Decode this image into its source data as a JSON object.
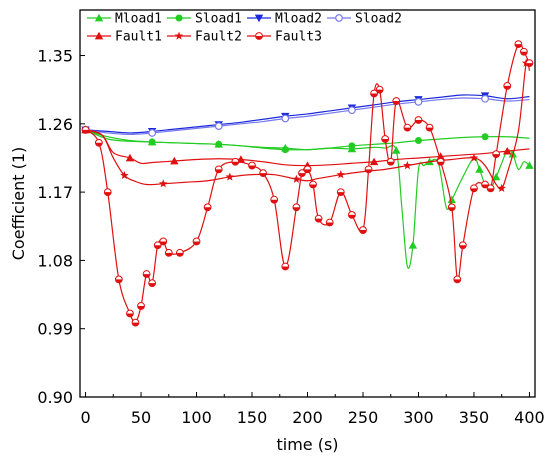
{
  "chart_data": {
    "type": "line",
    "title": "",
    "xlabel": "time (s)",
    "ylabel": "Coefficient (1)",
    "xlim": [
      -5,
      405
    ],
    "ylim": [
      0.9,
      1.41
    ],
    "xticks": [
      0,
      50,
      100,
      150,
      200,
      250,
      300,
      350,
      400
    ],
    "yticks": [
      0.9,
      0.99,
      1.08,
      1.17,
      1.26,
      1.35
    ],
    "xtick_labels": [
      "0",
      "50",
      "100",
      "150",
      "200",
      "250",
      "300",
      "350",
      "400"
    ],
    "ytick_labels": [
      "0.90",
      "0.99",
      "1.08",
      "1.17",
      "1.26",
      "1.35"
    ],
    "grid": false,
    "legend_position": "top",
    "series": [
      {
        "name": "Mload1",
        "color": "#22cc22",
        "marker": "triangle-up",
        "marker_step": 3,
        "x": [
          0,
          20,
          40,
          60,
          80,
          100,
          120,
          140,
          160,
          180,
          200,
          220,
          240,
          260,
          270,
          280,
          285,
          290,
          295,
          300,
          305,
          310,
          318,
          325,
          330,
          340,
          350,
          355,
          360,
          365,
          370,
          375,
          380,
          385,
          390,
          395,
          400
        ],
        "y": [
          1.252,
          1.243,
          1.238,
          1.236,
          1.235,
          1.234,
          1.233,
          1.231,
          1.229,
          1.228,
          1.226,
          1.228,
          1.227,
          1.229,
          1.228,
          1.225,
          1.15,
          1.072,
          1.1,
          1.2,
          1.205,
          1.21,
          1.208,
          1.15,
          1.16,
          1.19,
          1.215,
          1.2,
          1.18,
          1.175,
          1.19,
          1.208,
          1.225,
          1.22,
          1.2,
          1.21,
          1.205
        ]
      },
      {
        "name": "Sload1",
        "color": "#22cc22",
        "marker": "circle",
        "marker_step": 3,
        "x": [
          0,
          20,
          40,
          60,
          80,
          100,
          120,
          140,
          160,
          180,
          200,
          220,
          240,
          260,
          280,
          300,
          320,
          340,
          360,
          380,
          400
        ],
        "y": [
          1.252,
          1.24,
          1.237,
          1.236,
          1.235,
          1.234,
          1.233,
          1.231,
          1.228,
          1.226,
          1.226,
          1.228,
          1.231,
          1.233,
          1.235,
          1.238,
          1.24,
          1.242,
          1.243,
          1.243,
          1.241
        ]
      },
      {
        "name": "Mload2",
        "color": "#1a2adb",
        "marker": "triangle-down",
        "marker_step": 3,
        "x": [
          0,
          20,
          40,
          60,
          80,
          100,
          120,
          140,
          160,
          180,
          200,
          220,
          240,
          260,
          280,
          300,
          320,
          340,
          360,
          380,
          400
        ],
        "y": [
          1.252,
          1.25,
          1.248,
          1.25,
          1.253,
          1.256,
          1.259,
          1.262,
          1.266,
          1.27,
          1.273,
          1.277,
          1.281,
          1.285,
          1.289,
          1.292,
          1.295,
          1.298,
          1.297,
          1.293,
          1.296
        ]
      },
      {
        "name": "Sload2",
        "color": "#7777ee",
        "marker": "open-circle",
        "marker_step": 3,
        "x": [
          0,
          20,
          40,
          60,
          80,
          100,
          120,
          140,
          160,
          180,
          200,
          220,
          240,
          260,
          280,
          300,
          320,
          340,
          360,
          380,
          400
        ],
        "y": [
          1.252,
          1.248,
          1.246,
          1.248,
          1.251,
          1.254,
          1.257,
          1.26,
          1.263,
          1.267,
          1.27,
          1.274,
          1.278,
          1.282,
          1.286,
          1.289,
          1.292,
          1.294,
          1.293,
          1.29,
          1.292
        ]
      },
      {
        "name": "Fault1",
        "color": "#e01010",
        "marker": "triangle-up",
        "marker_step": 3,
        "x": [
          0,
          15,
          25,
          40,
          50,
          60,
          80,
          100,
          120,
          140,
          160,
          180,
          200,
          220,
          240,
          260,
          280,
          300,
          320,
          340,
          360,
          380,
          400
        ],
        "y": [
          1.252,
          1.245,
          1.222,
          1.215,
          1.208,
          1.209,
          1.211,
          1.213,
          1.214,
          1.213,
          1.21,
          1.206,
          1.205,
          1.206,
          1.208,
          1.21,
          1.213,
          1.215,
          1.217,
          1.219,
          1.221,
          1.224,
          1.227
        ]
      },
      {
        "name": "Fault2",
        "color": "#e01010",
        "marker": "star",
        "marker_step": 3,
        "x": [
          0,
          15,
          25,
          35,
          45,
          55,
          70,
          90,
          110,
          130,
          150,
          170,
          190,
          200,
          210,
          230,
          250,
          270,
          290,
          310,
          330,
          350,
          360,
          370,
          375,
          380,
          390,
          397,
          400
        ],
        "y": [
          1.252,
          1.245,
          1.215,
          1.192,
          1.184,
          1.18,
          1.181,
          1.183,
          1.185,
          1.19,
          1.193,
          1.193,
          1.187,
          1.185,
          1.188,
          1.193,
          1.197,
          1.2,
          1.205,
          1.21,
          1.213,
          1.215,
          1.205,
          1.18,
          1.175,
          1.195,
          1.25,
          1.34,
          1.33
        ]
      },
      {
        "name": "Fault3",
        "color": "#e01010",
        "marker": "half-circle",
        "marker_step": 1,
        "x": [
          0,
          12,
          20,
          30,
          40,
          45,
          50,
          55,
          60,
          65,
          70,
          75,
          85,
          100,
          110,
          120,
          135,
          150,
          160,
          170,
          180,
          190,
          195,
          200,
          205,
          210,
          220,
          230,
          240,
          250,
          255,
          260,
          265,
          270,
          275,
          280,
          290,
          300,
          310,
          320,
          330,
          335,
          340,
          350,
          360,
          365,
          370,
          380,
          390,
          395,
          400
        ],
        "y": [
          1.252,
          1.235,
          1.17,
          1.055,
          1.01,
          0.998,
          1.02,
          1.062,
          1.05,
          1.1,
          1.105,
          1.09,
          1.09,
          1.105,
          1.15,
          1.2,
          1.21,
          1.205,
          1.195,
          1.16,
          1.072,
          1.15,
          1.195,
          1.2,
          1.18,
          1.135,
          1.13,
          1.17,
          1.14,
          1.12,
          1.2,
          1.3,
          1.305,
          1.24,
          1.21,
          1.29,
          1.255,
          1.265,
          1.255,
          1.21,
          1.15,
          1.055,
          1.1,
          1.175,
          1.18,
          1.175,
          1.22,
          1.31,
          1.365,
          1.355,
          1.34
        ]
      }
    ]
  }
}
